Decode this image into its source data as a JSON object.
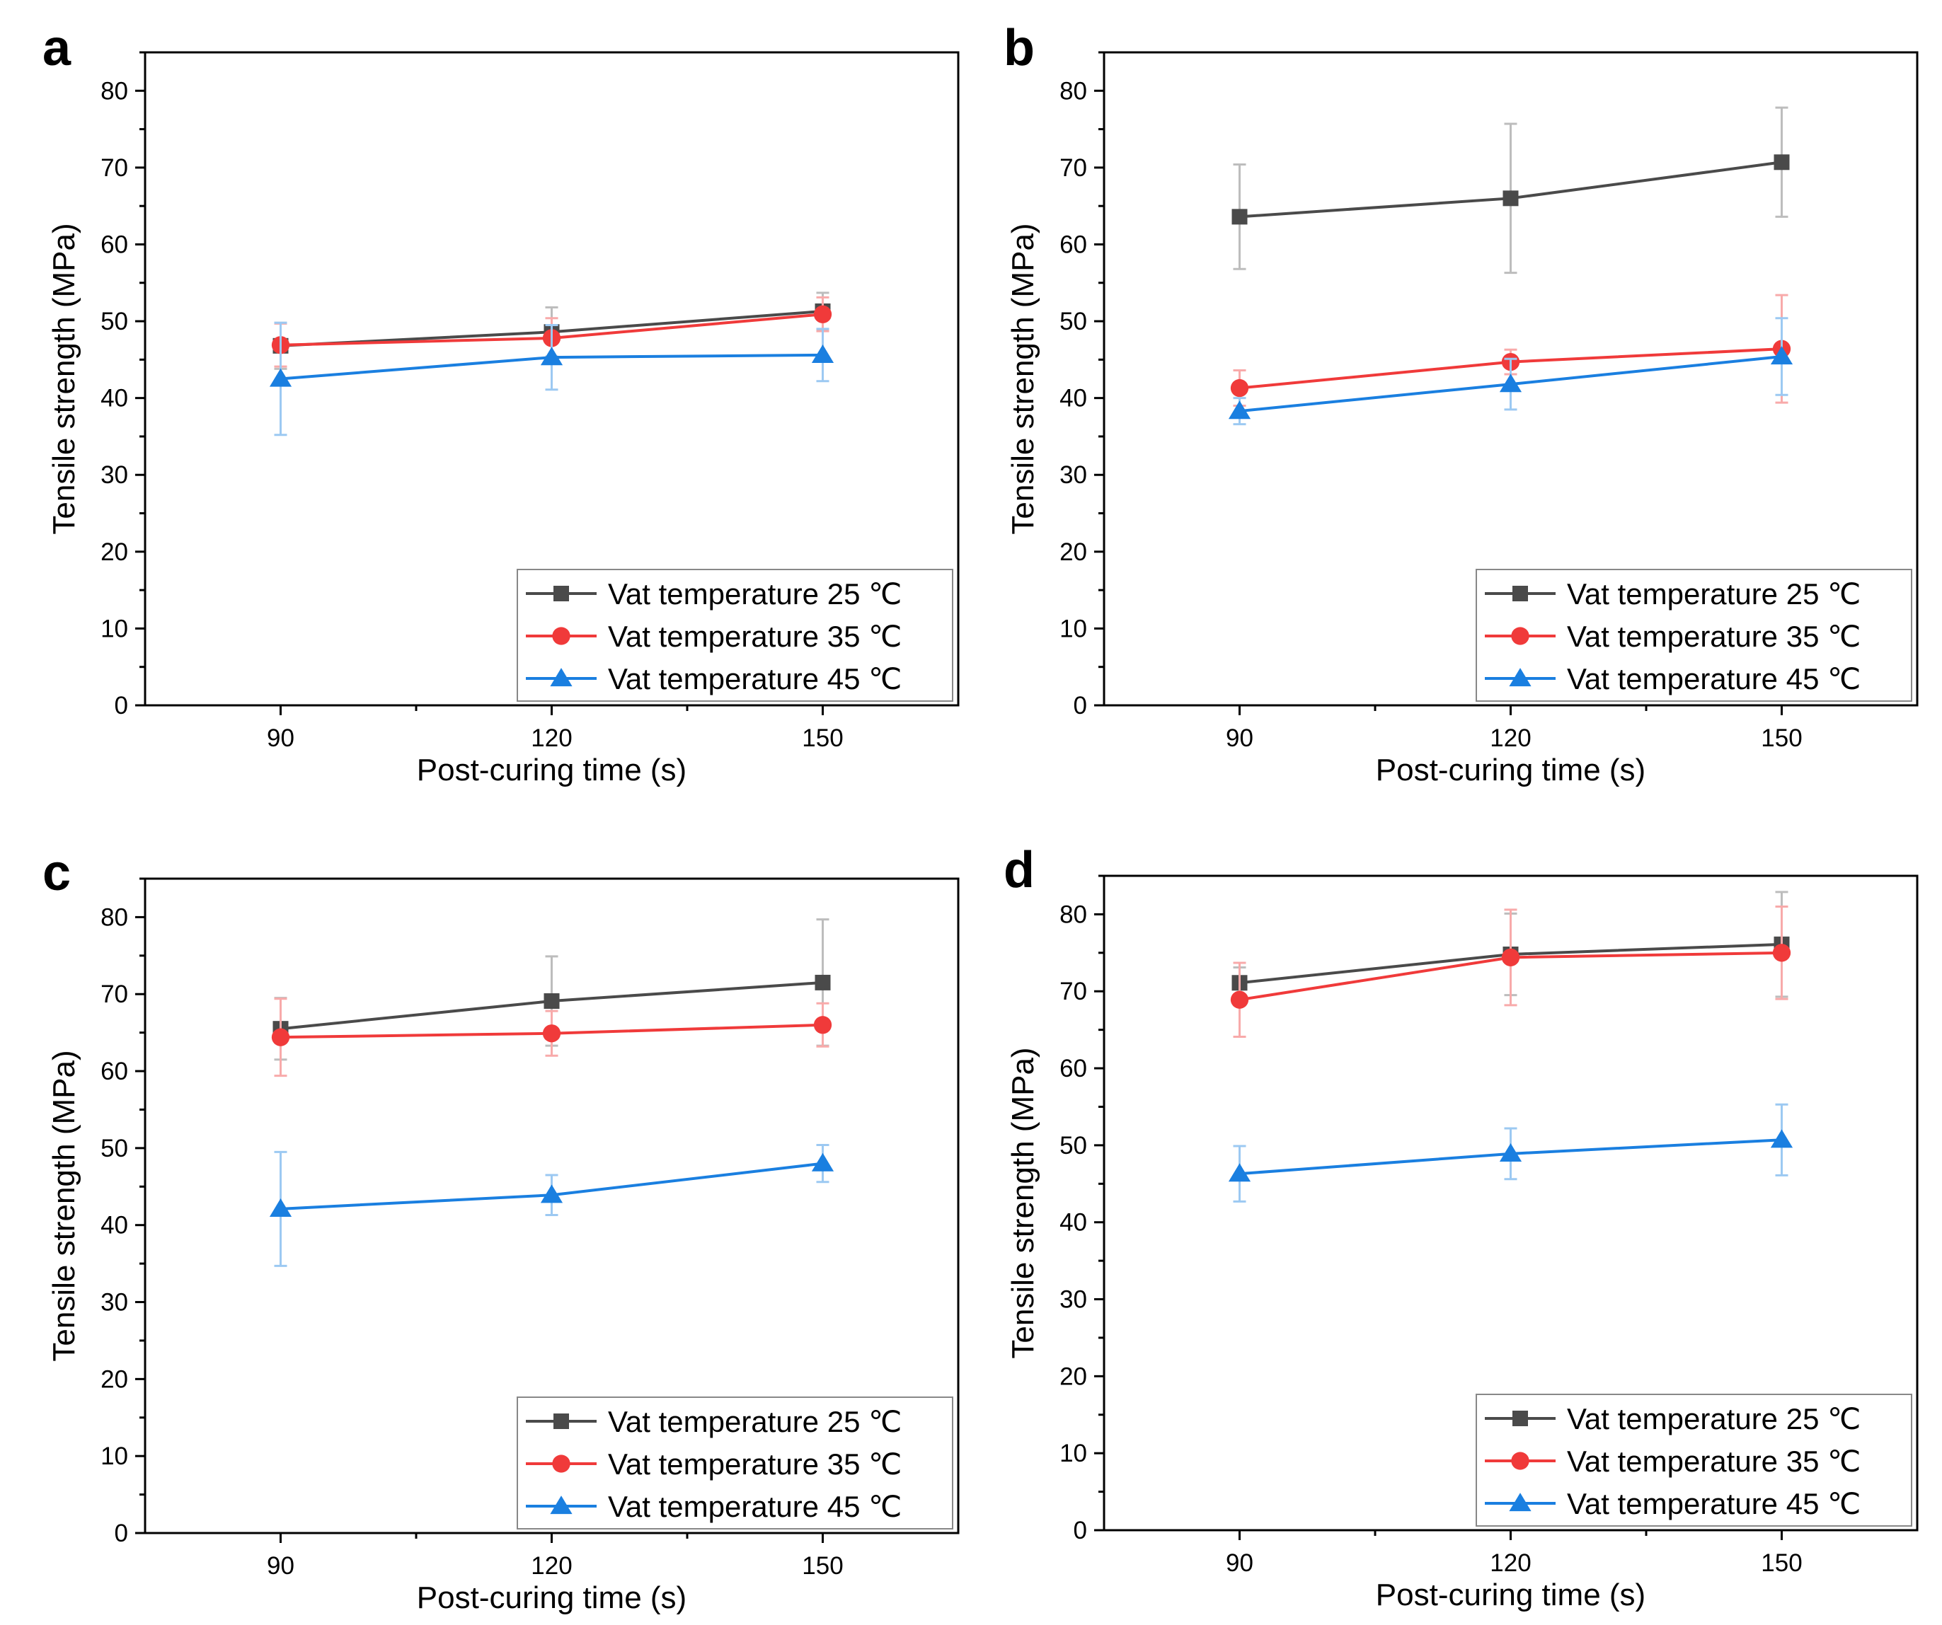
{
  "figure": {
    "chart_data": [
      {
        "panel": "a",
        "type": "line",
        "title": "",
        "xlabel": "Post-curing time (s)",
        "ylabel": "Tensile strength (MPa)",
        "x": [
          90,
          120,
          150
        ],
        "xlim": [
          75,
          165
        ],
        "ylim": [
          0,
          85
        ],
        "xticks": [
          90,
          120,
          150
        ],
        "yticks": [
          0,
          10,
          20,
          30,
          40,
          50,
          60,
          70,
          80
        ],
        "legend_position": "bottom-right",
        "grid": false,
        "series": [
          {
            "name": "Vat temperature 25 ℃",
            "color": "#4a4a4a",
            "marker": "square",
            "values": [
              46.8,
              48.6,
              51.3
            ],
            "errors": [
              3.0,
              3.2,
              2.4
            ]
          },
          {
            "name": "Vat temperature 35 ℃",
            "color": "#f03a3a",
            "marker": "circle",
            "values": [
              46.9,
              47.8,
              50.9
            ],
            "errors": [
              2.8,
              2.6,
              2.2
            ]
          },
          {
            "name": "Vat temperature 45 ℃",
            "color": "#1a7fe0",
            "marker": "triangle",
            "values": [
              42.5,
              45.3,
              45.6
            ],
            "errors": [
              7.3,
              4.2,
              3.4
            ]
          }
        ]
      },
      {
        "panel": "b",
        "type": "line",
        "title": "",
        "xlabel": "Post-curing time (s)",
        "ylabel": "Tensile strength (MPa)",
        "x": [
          90,
          120,
          150
        ],
        "xlim": [
          75,
          165
        ],
        "ylim": [
          0,
          85
        ],
        "xticks": [
          90,
          120,
          150
        ],
        "yticks": [
          0,
          10,
          20,
          30,
          40,
          50,
          60,
          70,
          80
        ],
        "legend_position": "bottom-right",
        "grid": false,
        "series": [
          {
            "name": "Vat temperature 25 ℃",
            "color": "#4a4a4a",
            "marker": "square",
            "values": [
              63.6,
              66.0,
              70.7
            ],
            "errors": [
              6.8,
              9.7,
              7.1
            ]
          },
          {
            "name": "Vat temperature 35 ℃",
            "color": "#f03a3a",
            "marker": "circle",
            "values": [
              41.3,
              44.7,
              46.4
            ],
            "errors": [
              2.3,
              1.6,
              7.0
            ]
          },
          {
            "name": "Vat temperature 45 ℃",
            "color": "#1a7fe0",
            "marker": "triangle",
            "values": [
              38.3,
              41.8,
              45.4
            ],
            "errors": [
              1.7,
              3.3,
              5.0
            ]
          }
        ]
      },
      {
        "panel": "c",
        "type": "line",
        "title": "",
        "xlabel": "Post-curing time (s)",
        "ylabel": "Tensile strength (MPa)",
        "x": [
          90,
          120,
          150
        ],
        "xlim": [
          75,
          165
        ],
        "ylim": [
          0,
          85
        ],
        "xticks": [
          90,
          120,
          150
        ],
        "yticks": [
          0,
          10,
          20,
          30,
          40,
          50,
          60,
          70,
          80
        ],
        "legend_position": "bottom-right",
        "grid": false,
        "series": [
          {
            "name": "Vat temperature 25 ℃",
            "color": "#4a4a4a",
            "marker": "square",
            "values": [
              65.5,
              69.1,
              71.5
            ],
            "errors": [
              4.0,
              5.8,
              8.2
            ]
          },
          {
            "name": "Vat temperature 35 ℃",
            "color": "#f03a3a",
            "marker": "circle",
            "values": [
              64.4,
              64.9,
              66.0
            ],
            "errors": [
              5.0,
              2.9,
              2.8
            ]
          },
          {
            "name": "Vat temperature 45 ℃",
            "color": "#1a7fe0",
            "marker": "triangle",
            "values": [
              42.1,
              43.9,
              48.0
            ],
            "errors": [
              7.4,
              2.6,
              2.4
            ]
          }
        ]
      },
      {
        "panel": "d",
        "type": "line",
        "title": "",
        "xlabel": "Post-curing time (s)",
        "ylabel": "Tensile strength (MPa)",
        "x": [
          90,
          120,
          150
        ],
        "xlim": [
          75,
          165
        ],
        "ylim": [
          0,
          85
        ],
        "xticks": [
          90,
          120,
          150
        ],
        "yticks": [
          0,
          10,
          20,
          30,
          40,
          50,
          60,
          70,
          80
        ],
        "legend_position": "bottom-right",
        "grid": false,
        "series": [
          {
            "name": "Vat temperature 25 ℃",
            "color": "#4a4a4a",
            "marker": "square",
            "values": [
              71.1,
              74.8,
              76.1
            ],
            "errors": [
              2.0,
              5.3,
              6.8
            ]
          },
          {
            "name": "Vat temperature 35 ℃",
            "color": "#f03a3a",
            "marker": "circle",
            "values": [
              68.9,
              74.4,
              75.0
            ],
            "errors": [
              4.8,
              6.2,
              6.0
            ]
          },
          {
            "name": "Vat temperature 45 ℃",
            "color": "#1a7fe0",
            "marker": "triangle",
            "values": [
              46.3,
              48.9,
              50.7
            ],
            "errors": [
              3.6,
              3.3,
              4.6
            ]
          }
        ]
      }
    ]
  }
}
